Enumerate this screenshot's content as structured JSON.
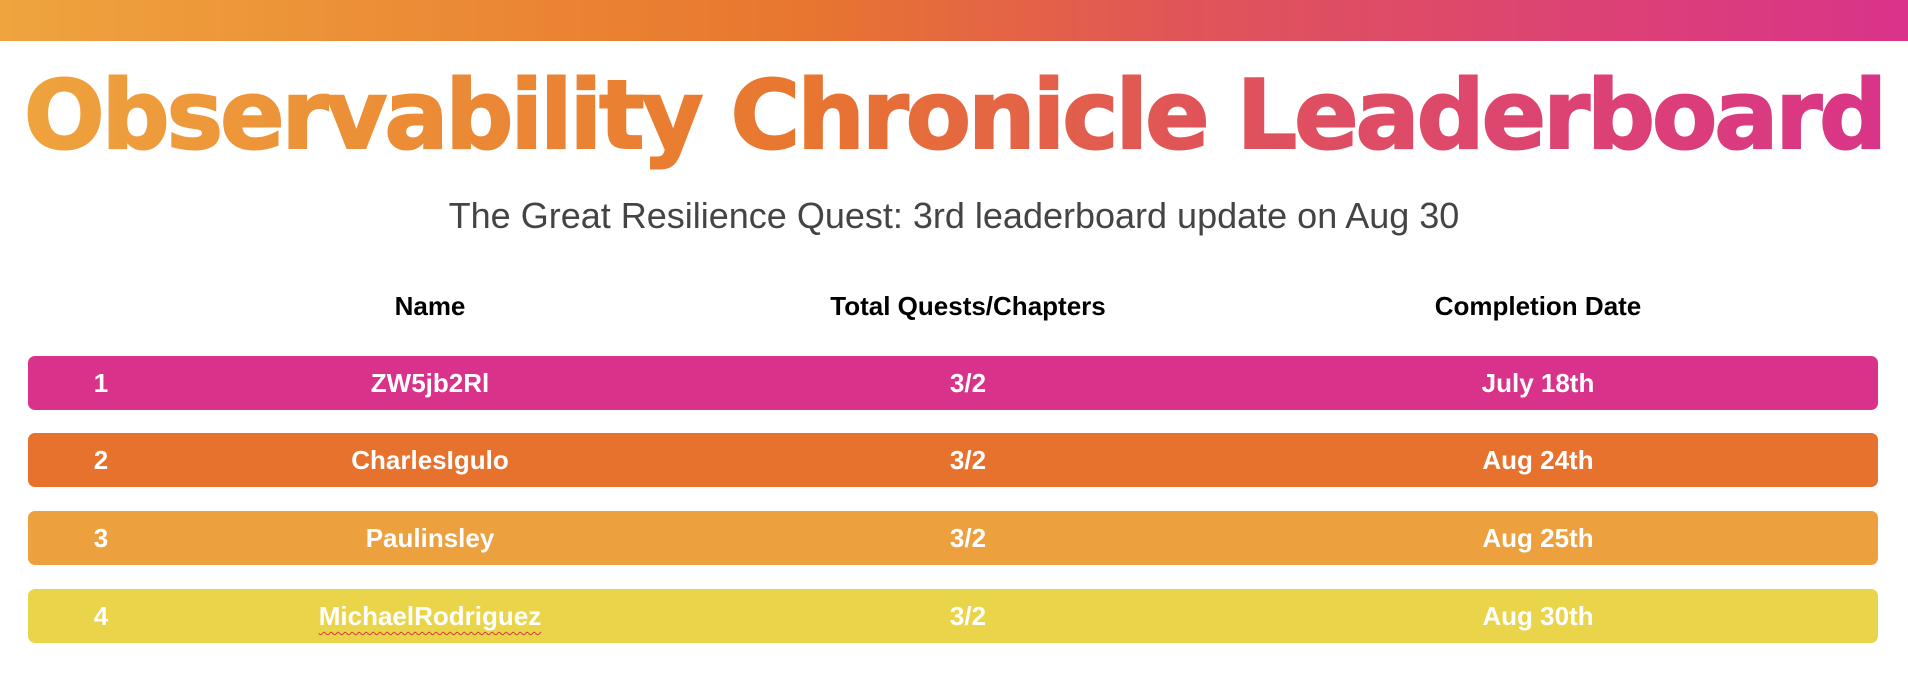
{
  "title": "Observability Chronicle Leaderboard",
  "subtitle": "The Great Resilience Quest: 3rd leaderboard update on Aug 30",
  "columns": {
    "name": "Name",
    "total": "Total Quests/Chapters",
    "date": "Completion Date"
  },
  "rows": [
    {
      "rank": "1",
      "name": "ZW5jb2Rl",
      "total": "3/2",
      "date": "July 18th",
      "color": "#d9328a"
    },
    {
      "rank": "2",
      "name": "CharlesIgulo",
      "total": "3/2",
      "date": "Aug 24th",
      "color": "#e6722d"
    },
    {
      "rank": "3",
      "name": "Paulinsley",
      "total": "3/2",
      "date": "Aug 25th",
      "color": "#eca03e"
    },
    {
      "rank": "4",
      "name": "MichaelRodriguez",
      "total": "3/2",
      "date": "Aug 30th",
      "color": "#ead44a"
    }
  ],
  "colors": {
    "gradient_start": "#efa43e",
    "gradient_mid": "#e8762f",
    "gradient_end": "#d9338a"
  }
}
